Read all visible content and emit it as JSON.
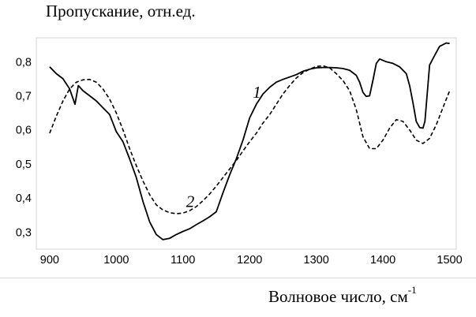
{
  "chart_data": {
    "type": "line",
    "ylabel": "Пропускание, отн.ед.",
    "xlabel": "Волновое число, см",
    "xlabel_sup": "-1",
    "xlim": [
      880,
      1510
    ],
    "ylim": [
      0.25,
      0.87
    ],
    "xticks": [
      900,
      1000,
      1100,
      1200,
      1300,
      1400,
      1500
    ],
    "yticks": [
      0.3,
      0.4,
      0.5,
      0.6,
      0.7,
      0.8
    ],
    "ytick_labels": [
      "0,3",
      "0,4",
      "0,5",
      "0,6",
      "0,7",
      "0,8"
    ],
    "xtick_labels": [
      "900",
      "1000",
      "1100",
      "1200",
      "1300",
      "1400",
      "1500"
    ],
    "grid": false,
    "series": [
      {
        "name": "1",
        "style": "solid",
        "label_at": [
          1200,
          0.71
        ],
        "points": [
          [
            900,
            0.785
          ],
          [
            910,
            0.765
          ],
          [
            920,
            0.75
          ],
          [
            930,
            0.72
          ],
          [
            938,
            0.675
          ],
          [
            943,
            0.73
          ],
          [
            950,
            0.715
          ],
          [
            960,
            0.7
          ],
          [
            970,
            0.685
          ],
          [
            980,
            0.665
          ],
          [
            990,
            0.645
          ],
          [
            1000,
            0.595
          ],
          [
            1010,
            0.565
          ],
          [
            1020,
            0.515
          ],
          [
            1030,
            0.46
          ],
          [
            1040,
            0.39
          ],
          [
            1050,
            0.33
          ],
          [
            1060,
            0.293
          ],
          [
            1070,
            0.278
          ],
          [
            1080,
            0.282
          ],
          [
            1090,
            0.293
          ],
          [
            1100,
            0.302
          ],
          [
            1110,
            0.31
          ],
          [
            1120,
            0.322
          ],
          [
            1130,
            0.333
          ],
          [
            1140,
            0.345
          ],
          [
            1150,
            0.36
          ],
          [
            1160,
            0.415
          ],
          [
            1170,
            0.468
          ],
          [
            1180,
            0.515
          ],
          [
            1190,
            0.57
          ],
          [
            1200,
            0.635
          ],
          [
            1210,
            0.675
          ],
          [
            1220,
            0.705
          ],
          [
            1230,
            0.725
          ],
          [
            1240,
            0.74
          ],
          [
            1250,
            0.748
          ],
          [
            1260,
            0.755
          ],
          [
            1270,
            0.762
          ],
          [
            1280,
            0.772
          ],
          [
            1290,
            0.778
          ],
          [
            1300,
            0.782
          ],
          [
            1310,
            0.783
          ],
          [
            1320,
            0.783
          ],
          [
            1330,
            0.782
          ],
          [
            1340,
            0.78
          ],
          [
            1350,
            0.775
          ],
          [
            1360,
            0.76
          ],
          [
            1365,
            0.74
          ],
          [
            1370,
            0.71
          ],
          [
            1375,
            0.698
          ],
          [
            1380,
            0.7
          ],
          [
            1385,
            0.745
          ],
          [
            1390,
            0.795
          ],
          [
            1395,
            0.808
          ],
          [
            1405,
            0.8
          ],
          [
            1415,
            0.795
          ],
          [
            1425,
            0.785
          ],
          [
            1435,
            0.765
          ],
          [
            1440,
            0.73
          ],
          [
            1445,
            0.68
          ],
          [
            1450,
            0.625
          ],
          [
            1455,
            0.607
          ],
          [
            1460,
            0.605
          ],
          [
            1463,
            0.625
          ],
          [
            1467,
            0.72
          ],
          [
            1470,
            0.79
          ],
          [
            1478,
            0.82
          ],
          [
            1485,
            0.845
          ],
          [
            1495,
            0.855
          ],
          [
            1500,
            0.853
          ]
        ]
      },
      {
        "name": "2",
        "style": "dashed",
        "label_at": [
          1100,
          0.39
        ],
        "points": [
          [
            900,
            0.59
          ],
          [
            910,
            0.64
          ],
          [
            920,
            0.685
          ],
          [
            930,
            0.72
          ],
          [
            940,
            0.74
          ],
          [
            950,
            0.747
          ],
          [
            960,
            0.748
          ],
          [
            970,
            0.74
          ],
          [
            980,
            0.72
          ],
          [
            990,
            0.69
          ],
          [
            1000,
            0.65
          ],
          [
            1010,
            0.6
          ],
          [
            1020,
            0.545
          ],
          [
            1030,
            0.495
          ],
          [
            1040,
            0.45
          ],
          [
            1050,
            0.41
          ],
          [
            1060,
            0.38
          ],
          [
            1070,
            0.365
          ],
          [
            1080,
            0.357
          ],
          [
            1090,
            0.354
          ],
          [
            1100,
            0.356
          ],
          [
            1110,
            0.363
          ],
          [
            1120,
            0.375
          ],
          [
            1130,
            0.392
          ],
          [
            1140,
            0.412
          ],
          [
            1150,
            0.435
          ],
          [
            1160,
            0.46
          ],
          [
            1170,
            0.485
          ],
          [
            1180,
            0.51
          ],
          [
            1190,
            0.538
          ],
          [
            1200,
            0.565
          ],
          [
            1210,
            0.59
          ],
          [
            1220,
            0.62
          ],
          [
            1230,
            0.645
          ],
          [
            1240,
            0.675
          ],
          [
            1250,
            0.705
          ],
          [
            1260,
            0.73
          ],
          [
            1270,
            0.752
          ],
          [
            1280,
            0.768
          ],
          [
            1290,
            0.778
          ],
          [
            1300,
            0.786
          ],
          [
            1310,
            0.788
          ],
          [
            1320,
            0.782
          ],
          [
            1330,
            0.765
          ],
          [
            1340,
            0.745
          ],
          [
            1350,
            0.715
          ],
          [
            1360,
            0.66
          ],
          [
            1370,
            0.58
          ],
          [
            1380,
            0.545
          ],
          [
            1390,
            0.545
          ],
          [
            1400,
            0.57
          ],
          [
            1410,
            0.605
          ],
          [
            1420,
            0.63
          ],
          [
            1430,
            0.625
          ],
          [
            1440,
            0.6
          ],
          [
            1450,
            0.57
          ],
          [
            1460,
            0.56
          ],
          [
            1470,
            0.575
          ],
          [
            1480,
            0.615
          ],
          [
            1490,
            0.665
          ],
          [
            1500,
            0.715
          ]
        ]
      }
    ]
  }
}
